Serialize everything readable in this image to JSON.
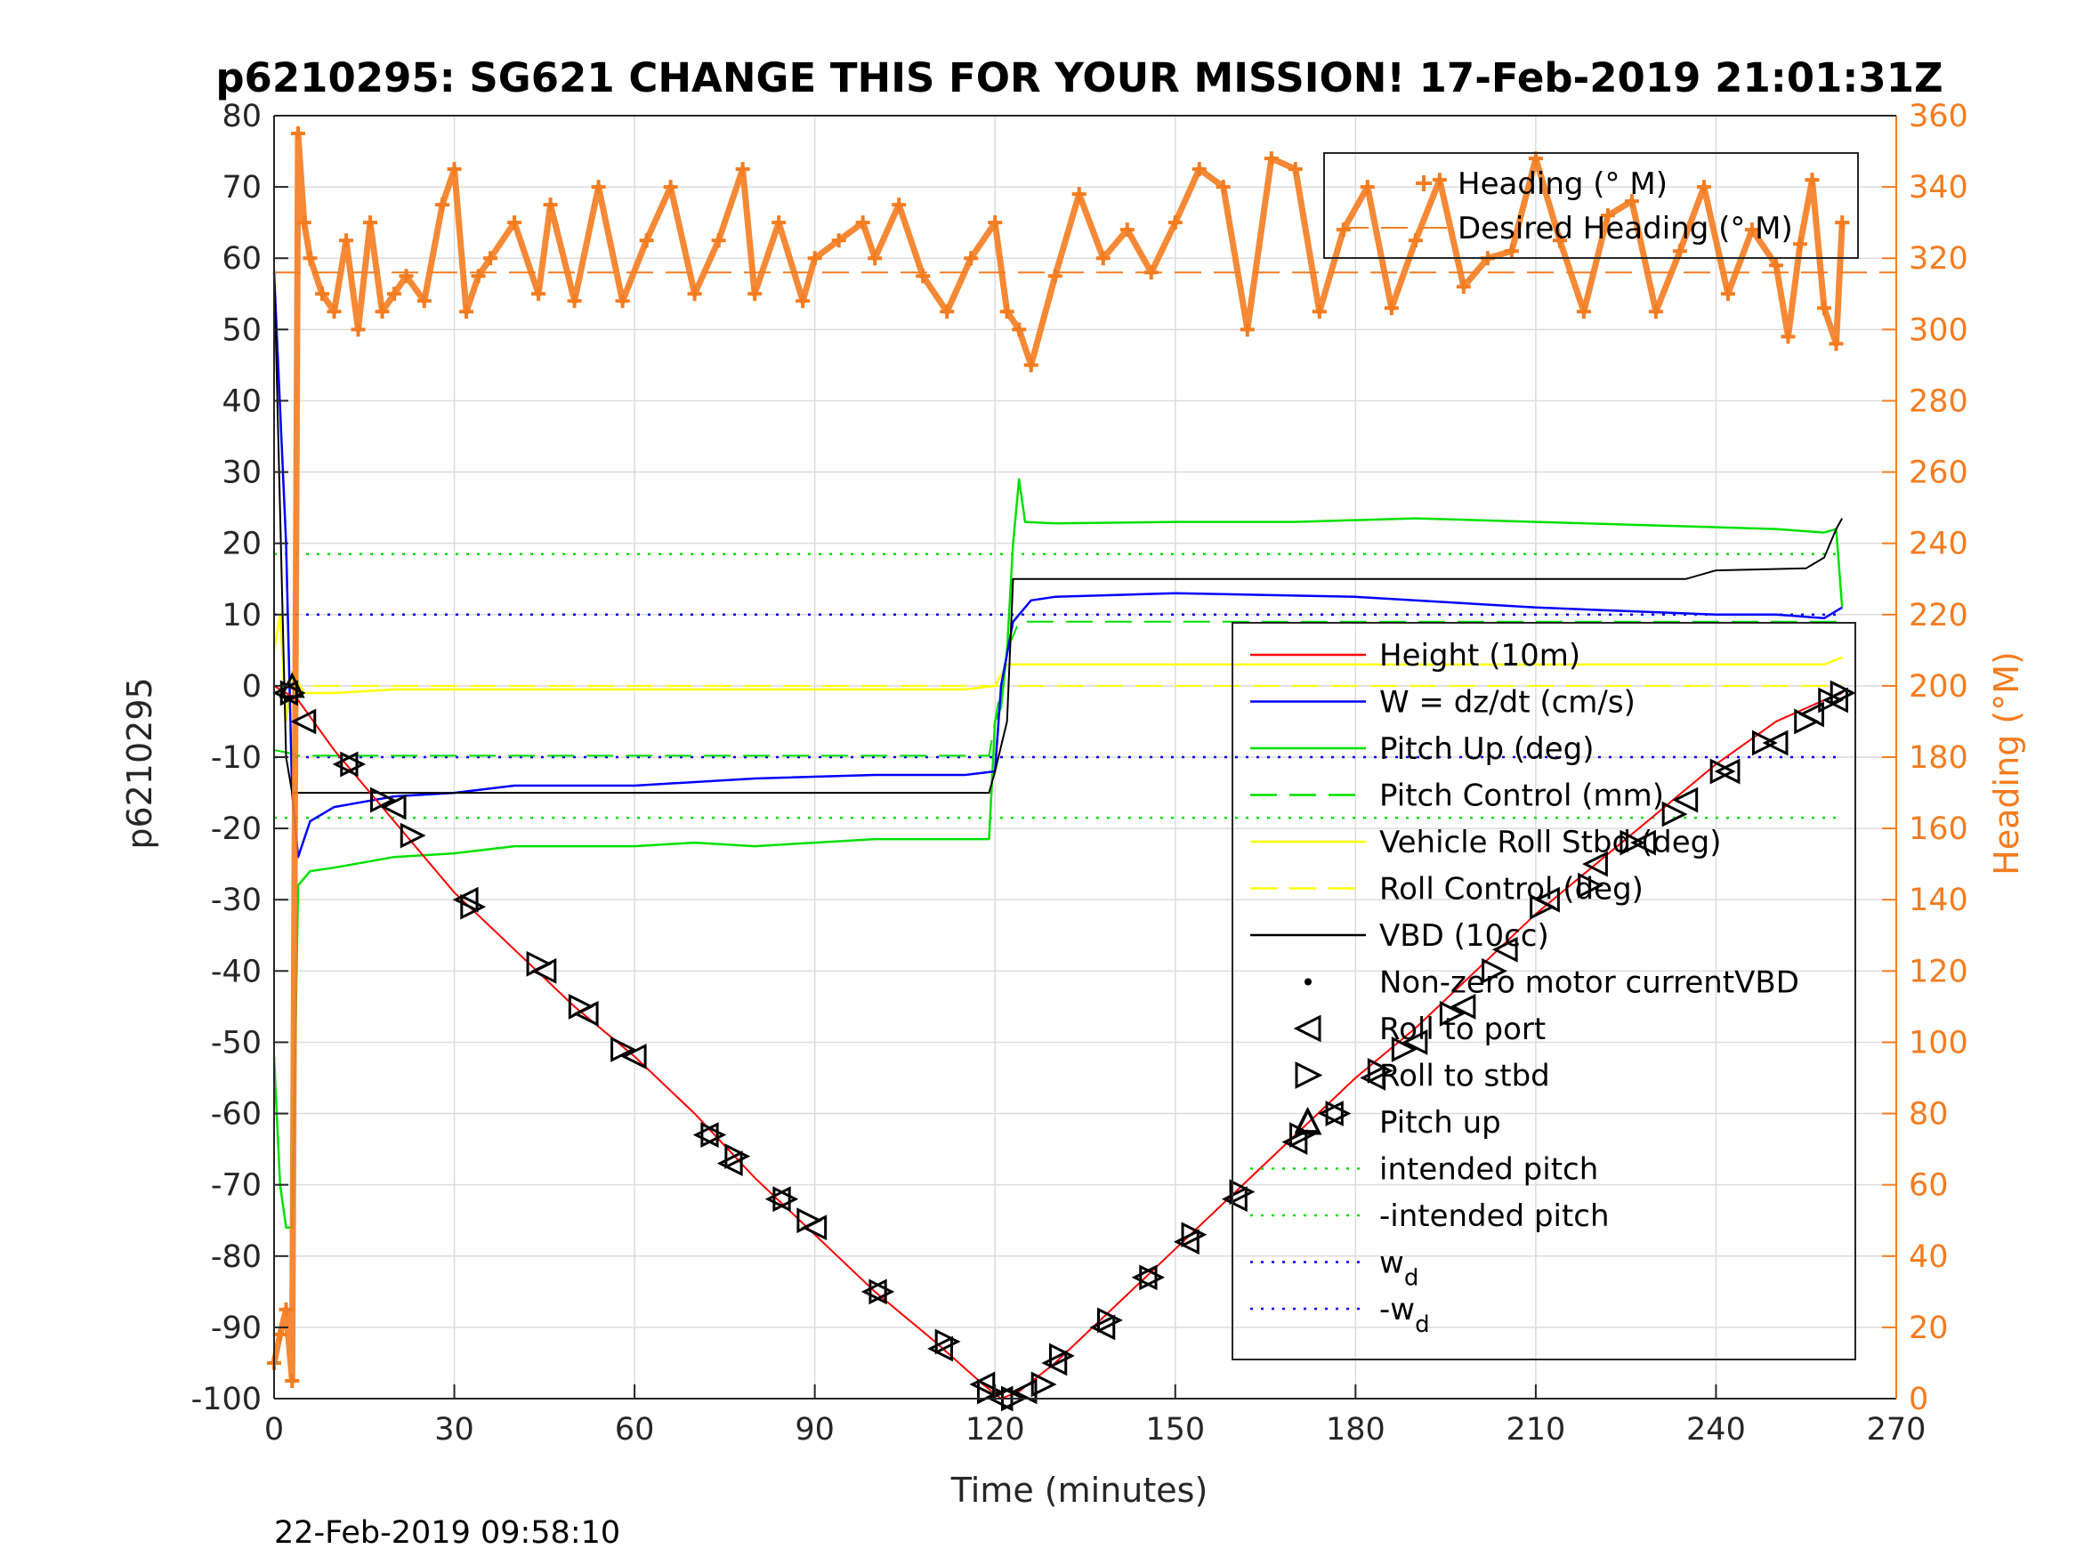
{
  "chart_data": {
    "type": "line",
    "title": "p6210295: SG621 CHANGE THIS FOR YOUR MISSION! 17-Feb-2019 21:01:31Z",
    "xlabel": "Time (minutes)",
    "ylabel": "p6210295",
    "y2label": "Heading (°M)",
    "xlim": [
      0,
      270
    ],
    "ylim": [
      -100,
      80
    ],
    "y2lim": [
      0,
      360
    ],
    "xticks": [
      "0",
      "30",
      "60",
      "90",
      "120",
      "150",
      "180",
      "210",
      "240",
      "270"
    ],
    "yticks": [
      "80",
      "70",
      "60",
      "50",
      "40",
      "30",
      "20",
      "10",
      "0",
      "-10",
      "-20",
      "-30",
      "-40",
      "-50",
      "-60",
      "-70",
      "-80",
      "-90",
      "-100"
    ],
    "y2ticks": [
      "360",
      "340",
      "320",
      "300",
      "280",
      "260",
      "240",
      "220",
      "200",
      "180",
      "160",
      "140",
      "120",
      "100",
      "80",
      "60",
      "40",
      "20",
      "0"
    ],
    "grid": true,
    "footer_timestamp": "22-Feb-2019 09:58:10",
    "colors": {
      "heading": "#f47c20",
      "height": "#ff0000",
      "w": "#0000ff",
      "pitch": "#00e000",
      "roll": "#ffff00",
      "vbd": "#000000"
    },
    "legend_right_axis": {
      "placement": "top-right",
      "entries": [
        "Heading (° M)",
        "Desired Heading (° M)"
      ]
    },
    "legend_main": {
      "placement": "right",
      "entries": [
        {
          "label": "Height (10m)",
          "color": "#ff0000",
          "style": "solid"
        },
        {
          "label": "W = dz/dt (cm/s)",
          "color": "#0000ff",
          "style": "solid"
        },
        {
          "label": "Pitch Up (deg)",
          "color": "#00e000",
          "style": "solid"
        },
        {
          "label": "Pitch Control (mm)",
          "color": "#00e000",
          "style": "dashed"
        },
        {
          "label": "Vehicle Roll Stbd (deg)",
          "color": "#ffff00",
          "style": "solid"
        },
        {
          "label": "Roll Control (deg)",
          "color": "#ffff00",
          "style": "dashed"
        },
        {
          "label": "VBD (10cc)",
          "color": "#000000",
          "style": "solid"
        },
        {
          "label": "Non-zero motor currentVBD",
          "color": "#000000",
          "style": "dot"
        },
        {
          "label": "Roll to port",
          "color": "#000000",
          "style": "triangle-left"
        },
        {
          "label": "Roll to stbd",
          "color": "#000000",
          "style": "triangle-right"
        },
        {
          "label": "Pitch up",
          "color": "#000000",
          "style": "triangle-up"
        },
        {
          "label": "intended pitch",
          "color": "#00e000",
          "style": "dotted"
        },
        {
          "label": "-intended pitch",
          "color": "#00e000",
          "style": "dotted"
        },
        {
          "label": "w",
          "sub": "d",
          "color": "#0000ff",
          "style": "dotted"
        },
        {
          "label": "-w",
          "sub": "d",
          "color": "#0000ff",
          "style": "dotted"
        }
      ]
    },
    "series": [
      {
        "name": "Height (10m)",
        "x": [
          0,
          2,
          4,
          10,
          20,
          30,
          40,
          50,
          60,
          70,
          80,
          90,
          100,
          110,
          118,
          121,
          124,
          130,
          140,
          150,
          160,
          170,
          180,
          190,
          200,
          210,
          220,
          230,
          240,
          250,
          258,
          261
        ],
        "y": [
          0,
          -1,
          -2,
          -9,
          -19,
          -29,
          -37,
          -45,
          -52,
          -60,
          -69,
          -77,
          -85,
          -92,
          -98,
          -100,
          -99,
          -95,
          -87,
          -79,
          -71,
          -63,
          -55,
          -48,
          -40,
          -32,
          -25,
          -18,
          -11,
          -5,
          -2,
          -1
        ]
      },
      {
        "name": "W = dz/dt (cm/s)",
        "x": [
          0,
          2,
          3,
          4,
          6,
          10,
          20,
          30,
          40,
          60,
          80,
          100,
          115,
          120,
          121,
          123,
          126,
          130,
          150,
          180,
          210,
          240,
          250,
          258,
          261
        ],
        "y": [
          58,
          20,
          -15,
          -24,
          -19,
          -17,
          -15.5,
          -15,
          -14,
          -14,
          -13,
          -12.5,
          -12.5,
          -12,
          0,
          9,
          12,
          12.5,
          13,
          12.5,
          11,
          10,
          10,
          9.5,
          11
        ]
      },
      {
        "name": "Pitch Up (deg)",
        "x": [
          0,
          1,
          2,
          3,
          4,
          6,
          10,
          20,
          30,
          40,
          50,
          60,
          70,
          80,
          90,
          100,
          110,
          119,
          120,
          121,
          122,
          123,
          124,
          125,
          130,
          150,
          170,
          190,
          210,
          230,
          250,
          258,
          260,
          261
        ],
        "y": [
          -52,
          -70,
          -76,
          -76,
          -28,
          -26,
          -25.5,
          -24,
          -23.5,
          -22.5,
          -22.5,
          -22.5,
          -22,
          -22.5,
          -22,
          -21.5,
          -21.5,
          -21.5,
          -5,
          -3,
          5,
          20,
          29,
          23,
          22.8,
          23,
          23,
          23.5,
          23,
          22.5,
          22,
          21.5,
          22,
          11
        ]
      },
      {
        "name": "Pitch Control (mm)",
        "x": [
          0,
          3,
          4,
          119,
          120,
          121,
          122,
          124,
          261
        ],
        "y": [
          -9,
          -9.5,
          -9.8,
          -9.8,
          -5,
          0,
          5,
          9,
          9
        ]
      },
      {
        "name": "Vehicle Roll Stbd (deg)",
        "x": [
          0,
          1,
          2,
          3,
          5,
          10,
          20,
          40,
          60,
          80,
          100,
          115,
          120,
          122,
          130,
          150,
          170,
          190,
          210,
          230,
          250,
          258,
          261
        ],
        "y": [
          5,
          10,
          -5,
          2,
          -1,
          -1,
          -0.5,
          -0.5,
          -0.5,
          -0.5,
          -0.5,
          -0.5,
          0,
          3,
          3,
          3,
          3,
          3,
          3,
          3,
          3,
          3,
          4
        ]
      },
      {
        "name": "Roll Control (deg)",
        "x": [
          0,
          261
        ],
        "y": [
          0,
          0
        ]
      },
      {
        "name": "VBD (10cc)",
        "x": [
          0,
          2,
          3,
          119,
          120,
          122,
          123,
          135,
          170,
          210,
          235,
          240,
          255,
          258,
          259,
          260,
          261
        ],
        "y": [
          59,
          -10,
          -15,
          -15,
          -12,
          -5,
          15,
          15,
          15,
          15,
          15,
          16.2,
          16.5,
          18,
          20,
          22,
          23.5
        ]
      },
      {
        "name": "intended pitch",
        "x": [
          0,
          261
        ],
        "y": [
          18.5,
          18.5
        ]
      },
      {
        "name": "-intended pitch",
        "x": [
          0,
          261
        ],
        "y": [
          -18.5,
          -18.5
        ]
      },
      {
        "name": "w_d",
        "x": [
          0,
          261
        ],
        "y": [
          10,
          10
        ]
      },
      {
        "name": "-w_d",
        "x": [
          0,
          261
        ],
        "y": [
          -10,
          -10
        ]
      },
      {
        "name": "Desired Heading (° M)",
        "axis": "right",
        "x": [
          0,
          270
        ],
        "y": [
          316,
          316
        ]
      },
      {
        "name": "Heading (° M)",
        "axis": "right",
        "x": [
          0,
          1,
          2,
          3,
          4,
          5,
          6,
          8,
          10,
          12,
          14,
          16,
          18,
          20,
          22,
          25,
          28,
          30,
          32,
          34,
          36,
          40,
          44,
          46,
          50,
          54,
          58,
          62,
          66,
          70,
          74,
          78,
          80,
          84,
          88,
          90,
          94,
          98,
          100,
          104,
          108,
          112,
          116,
          120,
          122,
          124,
          126,
          130,
          134,
          138,
          142,
          146,
          150,
          154,
          158,
          162,
          166,
          170,
          174,
          178,
          182,
          186,
          190,
          194,
          198,
          202,
          206,
          210,
          214,
          218,
          222,
          226,
          230,
          234,
          238,
          242,
          246,
          250,
          252,
          254,
          256,
          258,
          260,
          261
        ],
        "y": [
          10,
          18,
          25,
          5,
          355,
          330,
          320,
          310,
          305,
          325,
          300,
          330,
          305,
          310,
          315,
          308,
          335,
          345,
          305,
          315,
          320,
          330,
          310,
          335,
          308,
          340,
          308,
          325,
          340,
          310,
          325,
          345,
          310,
          330,
          308,
          320,
          325,
          330,
          320,
          335,
          315,
          305,
          320,
          330,
          305,
          300,
          290,
          315,
          338,
          320,
          328,
          316,
          330,
          345,
          340,
          300,
          348,
          345,
          305,
          328,
          340,
          306,
          325,
          342,
          312,
          320,
          322,
          348,
          325,
          305,
          332,
          336,
          305,
          322,
          340,
          310,
          328,
          318,
          298,
          324,
          342,
          306,
          296,
          330
        ]
      }
    ],
    "markers_roll_port": {
      "x": [
        2,
        5,
        12,
        20,
        32,
        45,
        52,
        60,
        72,
        76,
        84,
        90,
        100,
        111,
        118,
        121,
        125,
        130,
        138,
        145,
        152,
        160,
        170,
        176,
        183,
        190,
        198,
        205,
        212,
        220,
        228,
        235,
        242,
        250,
        256,
        260
      ],
      "y": [
        -1,
        -5,
        -11,
        -17,
        -30,
        -40,
        -46,
        -52,
        -63,
        -67,
        -72,
        -76,
        -85,
        -93,
        -98,
        -100,
        -99,
        -95,
        -90,
        -83,
        -78,
        -72,
        -64,
        -60,
        -55,
        -50,
        -45,
        -37,
        -30,
        -25,
        -22,
        -16,
        -12,
        -8,
        -4,
        -2
      ]
    },
    "markers_roll_stbd": {
      "x": [
        3,
        13,
        18,
        23,
        33,
        44,
        51,
        58,
        73,
        77,
        85,
        89,
        101,
        112,
        119,
        123,
        128,
        131,
        139,
        146,
        153,
        161,
        171,
        177,
        184,
        188,
        196,
        203,
        211,
        219,
        226,
        233,
        241,
        248,
        255,
        259,
        261
      ],
      "y": [
        -1,
        -11,
        -16,
        -21,
        -31,
        -39,
        -45,
        -51,
        -63,
        -66,
        -72,
        -75,
        -85,
        -92,
        -99,
        -100,
        -98,
        -94,
        -89,
        -83,
        -77,
        -71,
        -63,
        -60,
        -54,
        -51,
        -46,
        -40,
        -31,
        -28,
        -22,
        -18,
        -12,
        -8,
        -5,
        -2,
        -1
      ]
    },
    "markers_pitch_up": {
      "x": [
        3,
        172
      ],
      "y": [
        0,
        -61
      ]
    }
  }
}
